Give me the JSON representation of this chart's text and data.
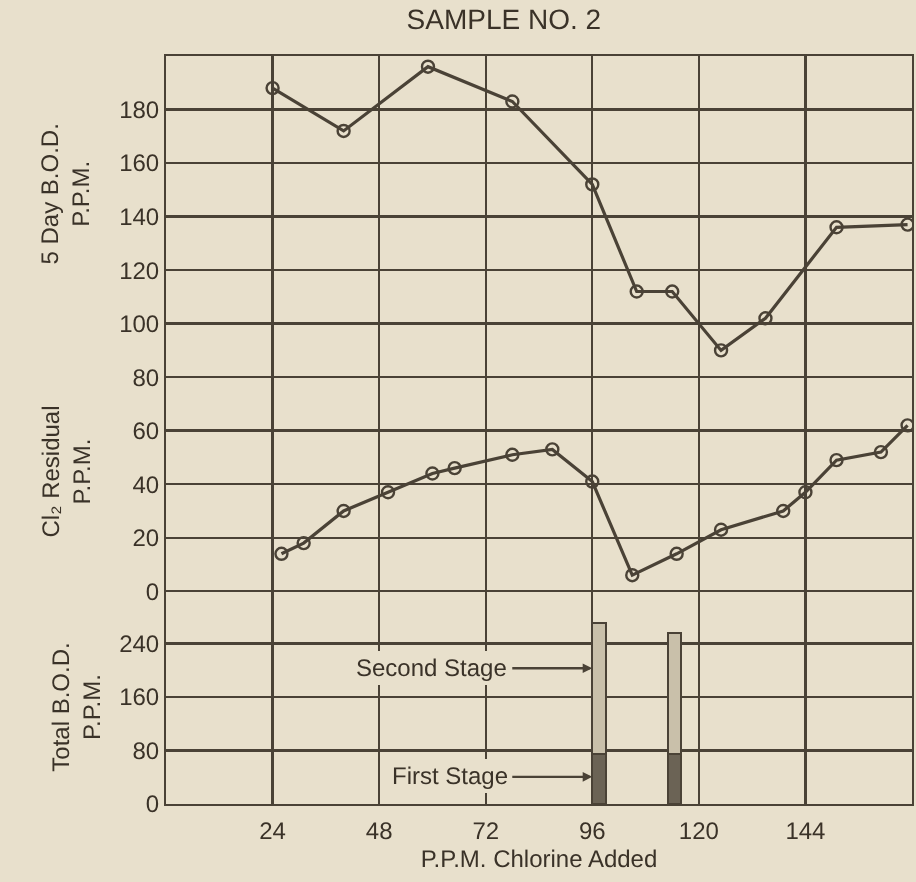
{
  "chart_data": [
    {
      "type": "line",
      "title": "SAMPLE NO. 2",
      "ylabel": "5 Day B.O.D. P.P.M.",
      "annotations": [
        "Cl₂ Residual P.P.M."
      ],
      "xlim": [
        0,
        168
      ],
      "xticks": [
        {
          "value": 24,
          "label": null
        },
        {
          "value": 48,
          "label": null
        },
        {
          "value": 72,
          "label": null
        },
        {
          "value": 96,
          "label": null
        },
        {
          "value": 120,
          "label": null
        },
        {
          "value": 144,
          "label": null
        }
      ],
      "ylim": [
        -7,
        200
      ],
      "yticks": [
        0,
        20,
        40,
        60,
        80,
        100,
        120,
        140,
        160,
        180
      ],
      "grid": true,
      "legend": false,
      "tick_labels": "y",
      "marker": "circle",
      "line_style": "solid",
      "series": [
        {
          "color": "#4a4236",
          "x": [
            24,
            40,
            59,
            78,
            96,
            106,
            114,
            125,
            135,
            151,
            167
          ],
          "values": [
            188,
            172,
            196,
            183,
            152,
            112,
            112,
            90,
            102,
            136,
            137
          ]
        },
        {
          "color": "#4a4236",
          "x": [
            26,
            31,
            40,
            50,
            60,
            65,
            78,
            87,
            96,
            105,
            115,
            125,
            139,
            144,
            151,
            161,
            167
          ],
          "values": [
            14,
            18,
            30,
            37,
            44,
            46,
            51,
            53,
            41,
            6,
            14,
            23,
            30,
            37,
            49,
            52,
            62
          ]
        }
      ]
    },
    {
      "type": "bar",
      "stacked": true,
      "xlabel": "P.P.M. Chlorine Added",
      "ylabel": "Total B.O.D. P.P.M.",
      "x": [
        97.5,
        114.5
      ],
      "xlim": [
        0,
        168
      ],
      "xticks": [
        24,
        48,
        72,
        96,
        120,
        144
      ],
      "ylim": [
        0,
        290
      ],
      "yticks": [
        0,
        80,
        160,
        240
      ],
      "grid": true,
      "legend": false,
      "annotations": [
        "Second Stage",
        "First Stage"
      ],
      "series": [
        {
          "color": "#6b6355",
          "values": [
            75,
            75
          ]
        },
        {
          "color": "#c9c0aa",
          "values": [
            195,
            180
          ]
        }
      ]
    }
  ]
}
